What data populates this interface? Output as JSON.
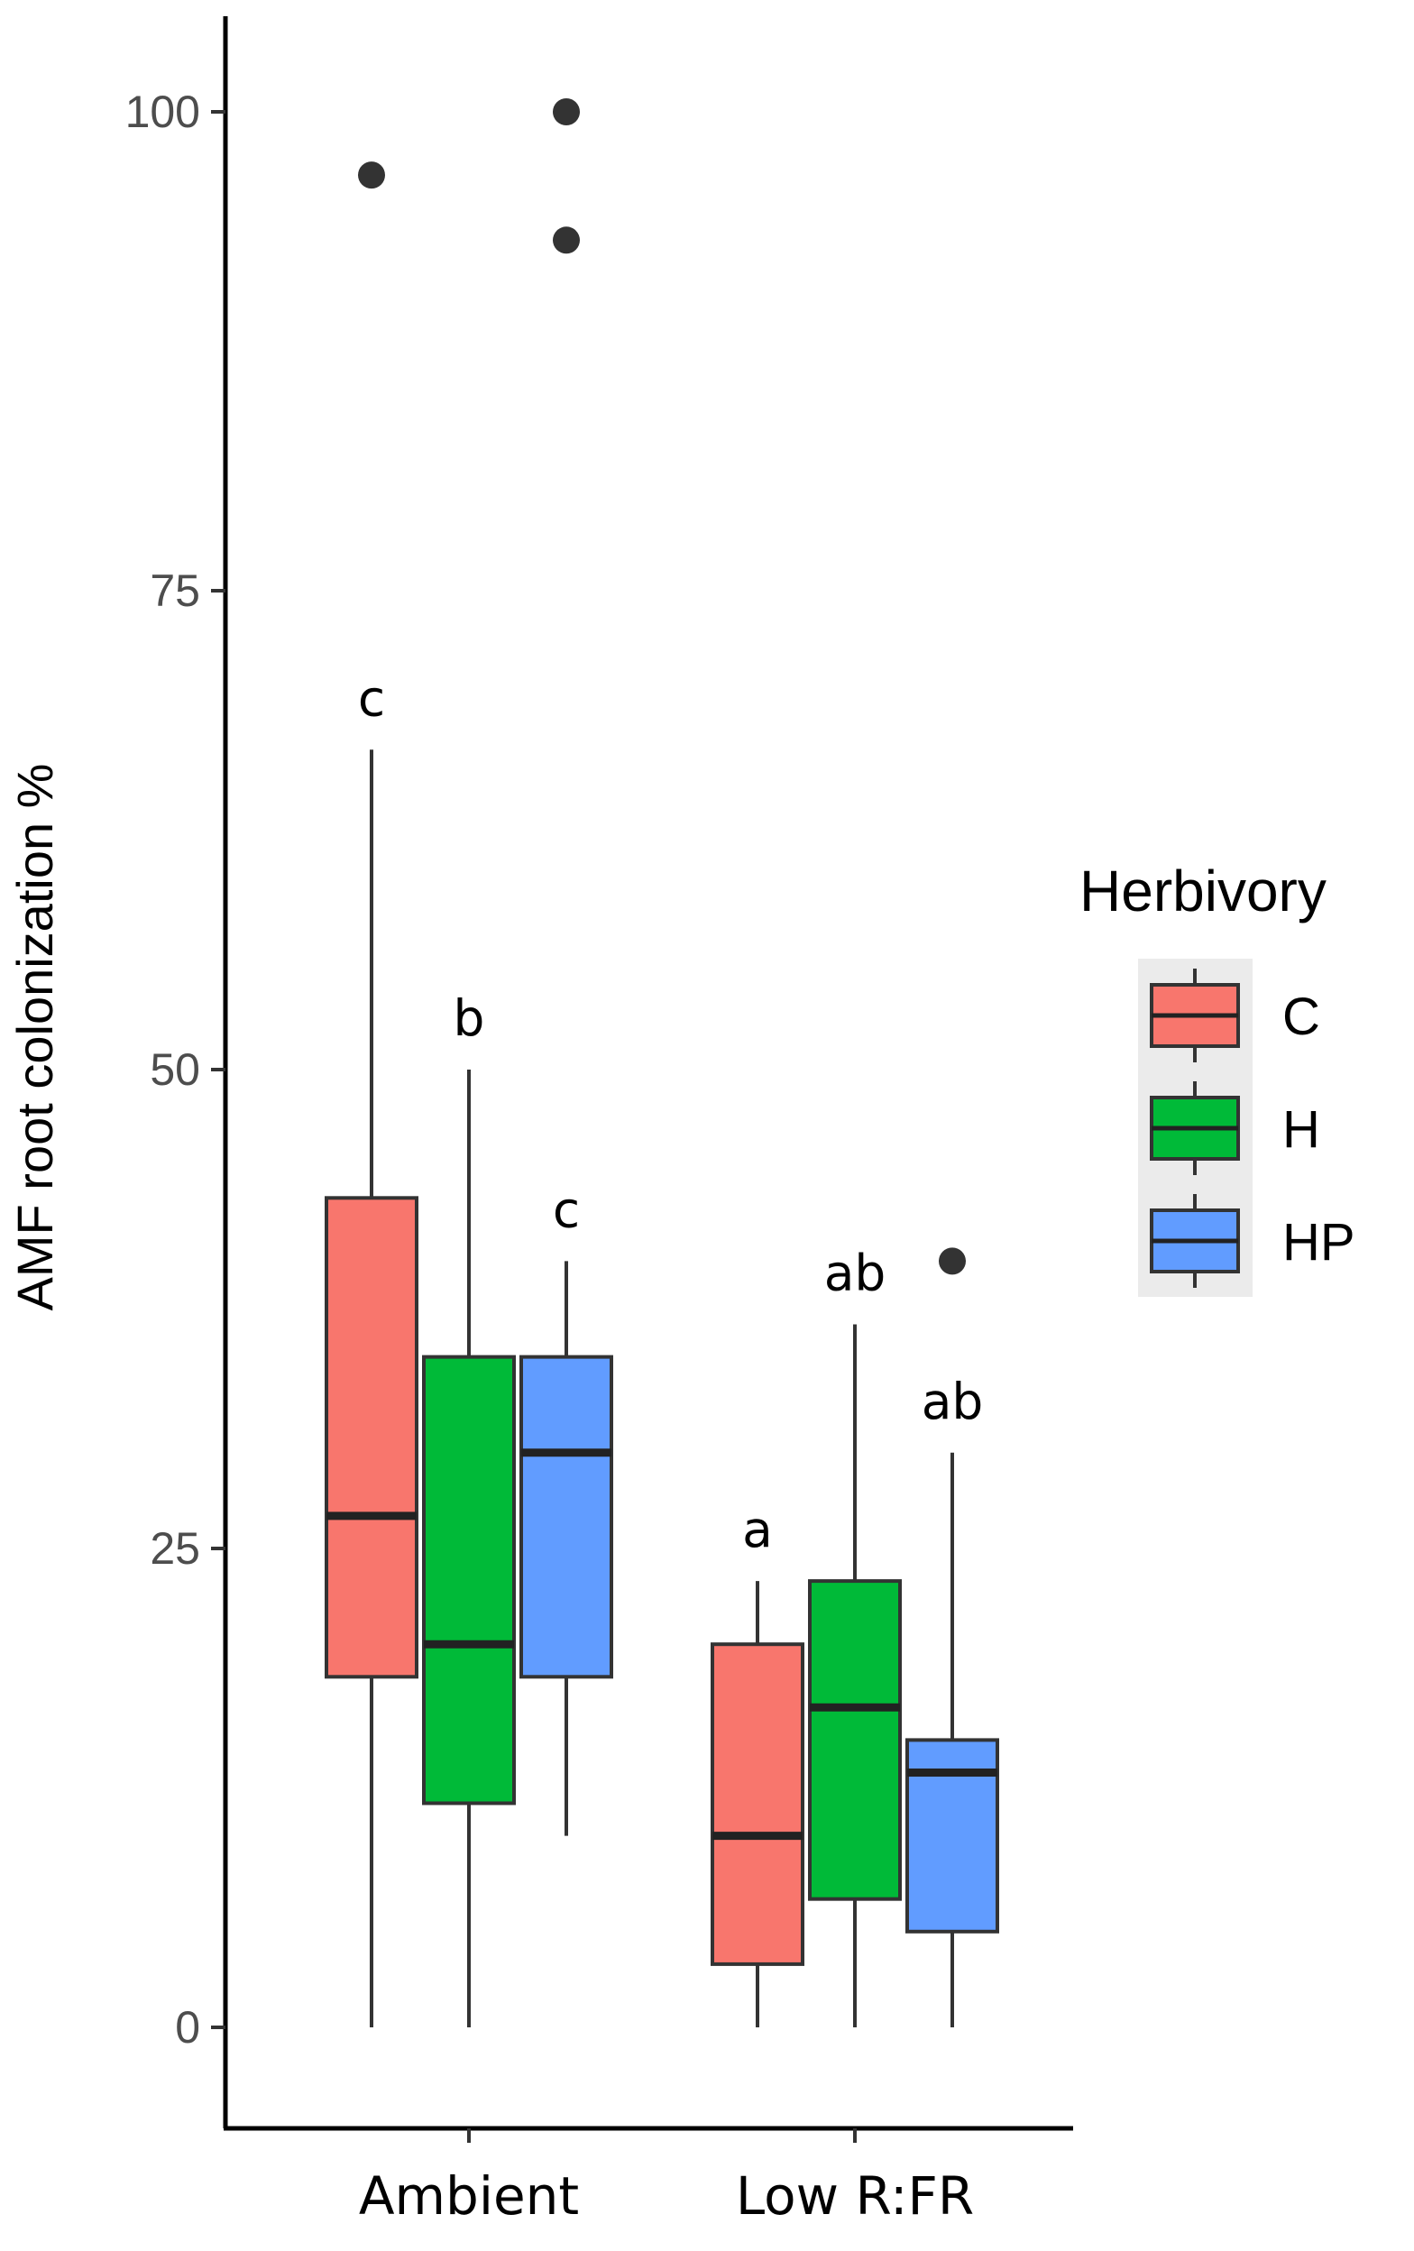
{
  "chart_data": {
    "type": "boxplot",
    "title": "",
    "xlabel": "",
    "ylabel": "AMF root colonization %",
    "ylim": [
      -3,
      105
    ],
    "yticks": [
      0,
      25,
      50,
      75,
      100
    ],
    "ytick_labels": [
      "0",
      "25",
      "50",
      "75",
      "100"
    ],
    "grid": false,
    "categories": [
      "Ambient",
      "Low R:FR"
    ],
    "legend": {
      "title": "Herbivory",
      "position": "right",
      "entries": [
        {
          "key": "C",
          "label": "C",
          "color": "#F8766D"
        },
        {
          "key": "H",
          "label": "H",
          "color": "#00BA38"
        },
        {
          "key": "HP",
          "label": "HP",
          "color": "#619CFF"
        }
      ]
    },
    "series": [
      {
        "name": "C",
        "color": "#F8766D",
        "boxes": [
          {
            "category": "Ambient",
            "whisker_low": 0,
            "q1": 18.3,
            "median": 26.7,
            "q3": 43.3,
            "whisker_high": 66.7,
            "outliers": [
              96.7
            ],
            "letter": "c"
          },
          {
            "category": "Low R:FR",
            "whisker_low": 0,
            "q1": 3.3,
            "median": 10.0,
            "q3": 20.0,
            "whisker_high": 23.3,
            "outliers": [],
            "letter": "a"
          }
        ]
      },
      {
        "name": "H",
        "color": "#00BA38",
        "boxes": [
          {
            "category": "Ambient",
            "whisker_low": 0,
            "q1": 11.7,
            "median": 20.0,
            "q3": 35.0,
            "whisker_high": 50.0,
            "outliers": [],
            "letter": "b"
          },
          {
            "category": "Low R:FR",
            "whisker_low": 0,
            "q1": 6.7,
            "median": 16.7,
            "q3": 23.3,
            "whisker_high": 36.7,
            "outliers": [],
            "letter": "ab"
          }
        ]
      },
      {
        "name": "HP",
        "color": "#619CFF",
        "boxes": [
          {
            "category": "Ambient",
            "whisker_low": 10.0,
            "q1": 18.3,
            "median": 30.0,
            "q3": 35.0,
            "whisker_high": 40.0,
            "outliers": [
              100,
              93.3
            ],
            "letter": "c"
          },
          {
            "category": "Low R:FR",
            "whisker_low": 0,
            "q1": 5.0,
            "median": 13.3,
            "q3": 15.0,
            "whisker_high": 30.0,
            "outliers": [
              40.0
            ],
            "letter": "ab"
          }
        ]
      }
    ]
  }
}
